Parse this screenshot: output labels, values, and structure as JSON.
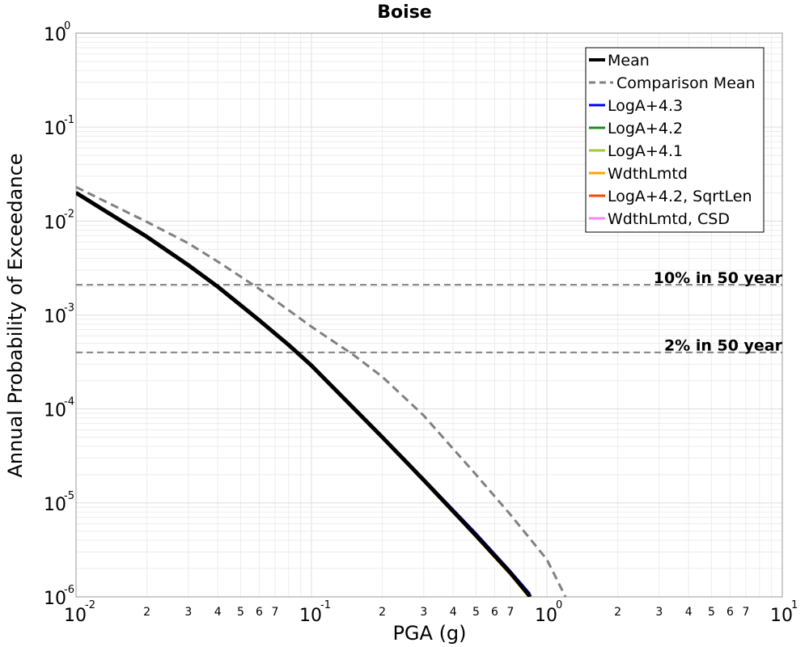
{
  "chart_data": {
    "type": "line",
    "title": "Boise",
    "xlabel": "PGA (g)",
    "ylabel": "Annual Probability of Exceedance",
    "x_scale": "log",
    "y_scale": "log",
    "xlim": [
      0.01,
      10
    ],
    "ylim": [
      1e-06,
      1
    ],
    "grid": true,
    "legend_position": "top-right",
    "x_major_ticks": [
      {
        "base": "10",
        "exp": "-2"
      },
      {
        "base": "10",
        "exp": "-1"
      },
      {
        "base": "10",
        "exp": "0"
      },
      {
        "base": "10",
        "exp": "1"
      }
    ],
    "y_major_ticks": [
      {
        "base": "10",
        "exp": "0"
      },
      {
        "base": "10",
        "exp": "-1"
      },
      {
        "base": "10",
        "exp": "-2"
      },
      {
        "base": "10",
        "exp": "-3"
      },
      {
        "base": "10",
        "exp": "-4"
      },
      {
        "base": "10",
        "exp": "-5"
      },
      {
        "base": "10",
        "exp": "-6"
      }
    ],
    "x_minor_tick_labels": [
      "2",
      "3",
      "4",
      "5",
      "6",
      "7"
    ],
    "series": [
      {
        "name": "Mean",
        "color": "#000000",
        "style": "solid",
        "width": 5,
        "x": [
          0.01,
          0.02,
          0.03,
          0.04,
          0.06,
          0.08,
          0.1,
          0.2,
          0.3,
          0.5,
          0.7,
          0.85
        ],
        "y": [
          0.02,
          0.0068,
          0.0034,
          0.002,
          0.00088,
          0.00048,
          0.00029,
          5e-05,
          1.75e-05,
          4.5e-06,
          1.8e-06,
          1e-06
        ]
      },
      {
        "name": "Comparison Mean",
        "color": "#808080",
        "style": "dashed",
        "width": 3,
        "x": [
          0.01,
          0.02,
          0.03,
          0.04,
          0.06,
          0.1,
          0.15,
          0.2,
          0.3,
          0.5,
          0.7,
          1.0,
          1.2
        ],
        "y": [
          0.023,
          0.0098,
          0.0058,
          0.0037,
          0.0019,
          0.00075,
          0.00038,
          0.00022,
          8.5e-05,
          2e-05,
          7.5e-06,
          2.5e-06,
          1e-06
        ]
      },
      {
        "name": "LogA+4.3",
        "color": "#0000ff",
        "style": "solid",
        "width": 2,
        "x": [
          0.01,
          0.02,
          0.03,
          0.04,
          0.06,
          0.08,
          0.1,
          0.2,
          0.3,
          0.5,
          0.7,
          0.85
        ],
        "y": [
          0.0203,
          0.0069,
          0.00345,
          0.00203,
          0.000895,
          0.000488,
          0.000295,
          5.12e-05,
          1.82e-05,
          4.8e-06,
          1.9e-06,
          1.08e-06
        ]
      },
      {
        "name": "LogA+4.2",
        "color": "#228b22",
        "style": "solid",
        "width": 2,
        "x": [
          0.01,
          0.02,
          0.03,
          0.04,
          0.06,
          0.08,
          0.1,
          0.2,
          0.3,
          0.5,
          0.7,
          0.85
        ],
        "y": [
          0.0199,
          0.00678,
          0.00339,
          0.00199,
          0.000878,
          0.000479,
          0.000289,
          4.98e-05,
          1.74e-05,
          4.5e-06,
          1.8e-06,
          1e-06
        ]
      },
      {
        "name": "LogA+4.1",
        "color": "#9acd32",
        "style": "solid",
        "width": 2,
        "x": [
          0.01,
          0.02,
          0.03,
          0.04,
          0.06,
          0.08,
          0.1,
          0.2,
          0.3,
          0.5,
          0.7,
          0.85
        ],
        "y": [
          0.0197,
          0.0067,
          0.00335,
          0.00197,
          0.00087,
          0.000474,
          0.000286,
          4.92e-05,
          1.71e-05,
          4.4e-06,
          1.76e-06,
          9.8e-07
        ]
      },
      {
        "name": "WdthLmtd",
        "color": "#ffa500",
        "style": "solid",
        "width": 2,
        "x": [
          0.01,
          0.02,
          0.03,
          0.04,
          0.06,
          0.08,
          0.1,
          0.2,
          0.3,
          0.5,
          0.7,
          0.85
        ],
        "y": [
          0.0196,
          0.00665,
          0.00332,
          0.00195,
          0.000862,
          0.00047,
          0.000283,
          4.85e-05,
          1.68e-05,
          4.3e-06,
          1.7e-06,
          9.5e-07
        ]
      },
      {
        "name": "LogA+4.2, SqrtLen",
        "color": "#ff4500",
        "style": "solid",
        "width": 2,
        "x": [
          0.01,
          0.02,
          0.03,
          0.04,
          0.06,
          0.08,
          0.1,
          0.2,
          0.3,
          0.5,
          0.7,
          0.85
        ],
        "y": [
          0.0198,
          0.00675,
          0.00337,
          0.00198,
          0.000874,
          0.000477,
          0.000288,
          4.95e-05,
          1.72e-05,
          4.4e-06,
          1.8e-06,
          1e-06
        ]
      },
      {
        "name": "WdthLmtd, CSD",
        "color": "#ff80ff",
        "style": "solid",
        "width": 2,
        "x": [
          0.01,
          0.02,
          0.03,
          0.04,
          0.06,
          0.08,
          0.1,
          0.2,
          0.3,
          0.5,
          0.7,
          0.85
        ],
        "y": [
          0.0199,
          0.00679,
          0.0034,
          0.00199,
          0.000879,
          0.000479,
          0.00029,
          4.99e-05,
          1.74e-05,
          4.5e-06,
          1.8e-06,
          1e-06
        ]
      }
    ],
    "draw_order": [
      7,
      6,
      5,
      4,
      3,
      2,
      0,
      1
    ],
    "reference_lines": [
      {
        "label": "10% in 50 year",
        "y": 0.0021,
        "color": "#808080",
        "style": "dashed"
      },
      {
        "label": "2% in 50 year",
        "y": 0.0004,
        "color": "#808080",
        "style": "dashed"
      }
    ]
  }
}
